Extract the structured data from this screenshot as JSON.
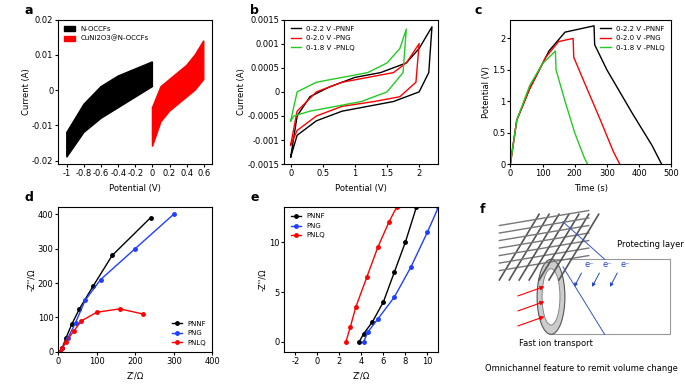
{
  "chart_data": [
    {
      "type": "line",
      "title": "a",
      "x_label": "Potential (V)",
      "y_label": "Current (A)",
      "xlim": [
        -1.1,
        0.7
      ],
      "xticks": [
        -1,
        -0.8,
        -0.6,
        -0.4,
        -0.2,
        0,
        0.2,
        0.4,
        0.6
      ],
      "ylim": [
        -0.021,
        0.02
      ],
      "yticks": [
        -0.02,
        -0.01,
        0,
        0.01,
        0.02
      ],
      "legend": "upper left",
      "series": [
        {
          "name": "N-OCCFs",
          "color": "#000000",
          "type": "area",
          "x": [
            -1,
            -0.8,
            -0.6,
            -0.4,
            -0.2,
            0,
            0,
            -0.2,
            -0.4,
            -0.6,
            -0.8,
            -1
          ],
          "values": [
            -0.012,
            -0.004,
            0.001,
            0.004,
            0.006,
            0.008,
            0.001,
            -0.002,
            -0.005,
            -0.008,
            -0.012,
            -0.019
          ]
        },
        {
          "name": "CuNi2O3@N-OCCFs",
          "color": "#ff0000",
          "type": "area",
          "x": [
            0,
            0.1,
            0.2,
            0.3,
            0.4,
            0.5,
            0.6,
            0.6,
            0.5,
            0.4,
            0.3,
            0.2,
            0.1,
            0
          ],
          "values": [
            -0.005,
            0.001,
            0.003,
            0.005,
            0.007,
            0.01,
            0.014,
            0.003,
            0.0,
            -0.002,
            -0.004,
            -0.006,
            -0.009,
            -0.016
          ]
        }
      ]
    },
    {
      "type": "line",
      "title": "b",
      "x_label": "Potential (V)",
      "y_label": "Current (A)",
      "xlim": [
        -0.1,
        2.3
      ],
      "xticks": [
        0,
        0.5,
        1,
        1.5,
        2
      ],
      "ylim": [
        -0.0015,
        0.0015
      ],
      "yticks": [
        -0.0015,
        -0.001,
        -0.0005,
        0,
        0.0005,
        0.001,
        0.0015
      ],
      "legend": "upper left",
      "series": [
        {
          "name": "0-2.2 V -PNNF",
          "color": "#000000",
          "x": [
            0,
            0.1,
            0.3,
            0.6,
            1.0,
            1.4,
            1.8,
            2.0,
            2.2,
            2.15,
            2.0,
            1.6,
            1.2,
            0.8,
            0.4,
            0.1,
            0
          ],
          "values": [
            -0.00135,
            -0.0005,
            -0.0001,
            0.0001,
            0.0003,
            0.0004,
            0.0006,
            0.0009,
            0.00135,
            0.0004,
            0.0,
            -0.0002,
            -0.0003,
            -0.0004,
            -0.0006,
            -0.0009,
            -0.00135
          ]
        },
        {
          "name": "0-2.0 V -PNG",
          "color": "#ff0000",
          "x": [
            0,
            0.1,
            0.4,
            0.8,
            1.2,
            1.6,
            1.8,
            2.0,
            1.95,
            1.7,
            1.3,
            0.8,
            0.4,
            0.1,
            0
          ],
          "values": [
            -0.0011,
            -0.0004,
            0.0,
            0.0002,
            0.0003,
            0.0004,
            0.0006,
            0.001,
            0.0002,
            -0.0001,
            -0.0002,
            -0.0003,
            -0.0005,
            -0.0008,
            -0.0011
          ]
        },
        {
          "name": "0-1.8 V -PNLQ",
          "color": "#22cc22",
          "x": [
            0,
            0.1,
            0.4,
            0.8,
            1.2,
            1.5,
            1.7,
            1.8,
            1.75,
            1.5,
            1.1,
            0.7,
            0.3,
            0.05,
            0
          ],
          "values": [
            -0.0006,
            0.0,
            0.0002,
            0.0003,
            0.0004,
            0.0006,
            0.0009,
            0.0013,
            0.0004,
            0.0,
            -0.0002,
            -0.0003,
            -0.0004,
            -0.0005,
            -0.0006
          ]
        }
      ]
    },
    {
      "type": "line",
      "title": "c",
      "x_label": "Time (s)",
      "y_label": "Potential (V)",
      "xlim": [
        0,
        500
      ],
      "xticks": [
        0,
        100,
        200,
        300,
        400,
        500
      ],
      "ylim": [
        0,
        2.3
      ],
      "yticks": [
        0,
        0.5,
        1,
        1.5,
        2
      ],
      "legend": "upper right",
      "series": [
        {
          "name": "0-2.2 V -PNNF",
          "color": "#000000",
          "x": [
            0,
            20,
            60,
            120,
            170,
            260,
            262,
            300,
            380,
            440,
            470
          ],
          "values": [
            0,
            0.7,
            1.2,
            1.8,
            2.1,
            2.2,
            1.9,
            1.5,
            0.8,
            0.3,
            0
          ]
        },
        {
          "name": "0-2.0 V -PNG",
          "color": "#ff0000",
          "x": [
            0,
            20,
            60,
            110,
            150,
            195,
            197,
            230,
            280,
            320,
            340
          ],
          "values": [
            0,
            0.7,
            1.2,
            1.7,
            1.95,
            2.0,
            1.7,
            1.3,
            0.7,
            0.2,
            0
          ]
        },
        {
          "name": "0-1.8 V -PNLQ",
          "color": "#22cc22",
          "x": [
            0,
            20,
            60,
            100,
            140,
            142,
            170,
            200,
            230,
            240
          ],
          "values": [
            0,
            0.7,
            1.25,
            1.6,
            1.8,
            1.5,
            1.0,
            0.5,
            0.1,
            0
          ]
        }
      ]
    },
    {
      "type": "line",
      "title": "d",
      "x_label": "Z'/Ω",
      "y_label": "-Z''/Ω",
      "xlim": [
        0,
        400
      ],
      "xticks": [
        0,
        100,
        200,
        300,
        400
      ],
      "ylim": [
        0,
        420
      ],
      "yticks": [
        0,
        100,
        200,
        300,
        400
      ],
      "legend": "lower right",
      "series": [
        {
          "name": "PNNF",
          "color": "#000000",
          "marker": "o",
          "x": [
            5,
            10,
            20,
            35,
            55,
            90,
            140,
            240
          ],
          "values": [
            0,
            10,
            40,
            80,
            125,
            190,
            280,
            390
          ]
        },
        {
          "name": "PNG",
          "color": "#1f3fff",
          "marker": "o",
          "x": [
            5,
            10,
            25,
            45,
            70,
            110,
            200,
            300
          ],
          "values": [
            0,
            10,
            40,
            85,
            150,
            210,
            300,
            400
          ]
        },
        {
          "name": "PNLQ",
          "color": "#ff0000",
          "marker": "o",
          "x": [
            5,
            10,
            20,
            40,
            60,
            100,
            160,
            220
          ],
          "values": [
            0,
            10,
            30,
            60,
            90,
            115,
            125,
            110
          ]
        }
      ]
    },
    {
      "type": "line",
      "title": "e",
      "x_label": "Z'/Ω",
      "y_label": "-Z''/Ω",
      "xlim": [
        -3,
        11
      ],
      "xticks": [
        -2,
        0,
        2,
        4,
        6,
        8,
        10
      ],
      "ylim": [
        -1,
        13.5
      ],
      "yticks": [
        0,
        5,
        10
      ],
      "legend": "upper left",
      "series": [
        {
          "name": "PNNF",
          "color": "#000000",
          "marker": "o",
          "x": [
            3.8,
            4.2,
            5,
            6,
            7,
            8,
            9
          ],
          "values": [
            0,
            0.8,
            2,
            4,
            7,
            10,
            13.5
          ]
        },
        {
          "name": "PNG",
          "color": "#1f3fff",
          "marker": "o",
          "x": [
            4.2,
            4.6,
            5.5,
            7,
            8.5,
            10,
            11
          ],
          "values": [
            0,
            1,
            2.3,
            4.5,
            7.5,
            11,
            13.5
          ]
        },
        {
          "name": "PNLQ",
          "color": "#ff0000",
          "marker": "o",
          "x": [
            2.6,
            3,
            3.5,
            4.5,
            5.5,
            6.5,
            7.2
          ],
          "values": [
            0,
            1.5,
            3.5,
            6.5,
            9.5,
            12,
            13.5
          ]
        }
      ]
    }
  ],
  "diagram": {
    "title": "f",
    "protecting_layer": "Protecting layer",
    "fast_ion": "Fast ion transport",
    "omnichannel": "Omnichannel feature to remit volume change",
    "electrons": [
      "e⁻",
      "e⁻",
      "e⁻"
    ]
  }
}
